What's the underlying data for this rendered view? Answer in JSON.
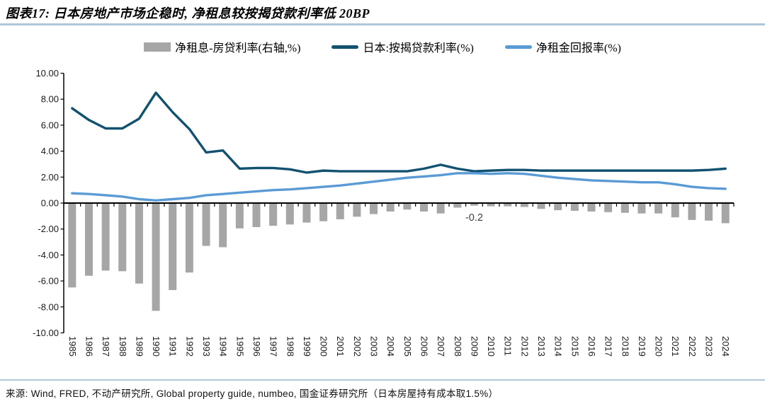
{
  "title": "图表17: 日本房地产市场企稳时, 净租息较按揭贷款利率低 20BP",
  "source": "来源: Wind, FRED, 不动产研究所, Global property guide, numbeo, 国金证券研究所（日本房屋持有成本取1.5%）",
  "legend": {
    "items": [
      {
        "label": "净租息-房贷利率(右轴,%)",
        "swatch": "bar",
        "color": "#a6a6a6"
      },
      {
        "label": "日本:按揭贷款利率(%)",
        "swatch": "line",
        "color": "#12516f"
      },
      {
        "label": "净租金回报率(%)",
        "swatch": "line",
        "color": "#5b9bd5"
      }
    ]
  },
  "colors": {
    "bar": "#a6a6a6",
    "mortgage_line": "#12516f",
    "rental_line": "#5b9bd5",
    "axis": "#000000",
    "rule": "#aec6d8",
    "annotation": "#404040"
  },
  "chart_data": {
    "type": "combo",
    "title": "图表17: 日本房地产市场企稳时, 净租息较按揭贷款利率低 20BP",
    "x": [
      1985,
      1986,
      1987,
      1988,
      1989,
      1990,
      1991,
      1992,
      1993,
      1994,
      1995,
      1996,
      1997,
      1998,
      1999,
      2000,
      2001,
      2002,
      2003,
      2004,
      2005,
      2006,
      2007,
      2008,
      2009,
      2010,
      2011,
      2012,
      2013,
      2014,
      2015,
      2016,
      2017,
      2018,
      2019,
      2020,
      2021,
      2022,
      2023,
      2024
    ],
    "series": [
      {
        "name": "净租息-房贷利率(右轴,%)",
        "type": "bar",
        "axis": "right",
        "color": "#a6a6a6",
        "values": [
          -6.5,
          -5.6,
          -5.2,
          -5.25,
          -6.2,
          -8.3,
          -6.7,
          -5.35,
          -3.3,
          -3.4,
          -1.95,
          -1.85,
          -1.75,
          -1.65,
          -1.5,
          -1.4,
          -1.25,
          -1.05,
          -0.85,
          -0.65,
          -0.5,
          -0.65,
          -0.8,
          -0.35,
          -0.2,
          -0.25,
          -0.25,
          -0.3,
          -0.45,
          -0.55,
          -0.6,
          -0.65,
          -0.7,
          -0.75,
          -0.8,
          -0.8,
          -1.1,
          -1.3,
          -1.35,
          -1.55
        ]
      },
      {
        "name": "日本:按揭贷款利率(%)",
        "type": "line",
        "axis": "left",
        "color": "#12516f",
        "values": [
          7.3,
          6.4,
          5.75,
          5.75,
          6.5,
          8.5,
          7.0,
          5.7,
          3.9,
          4.05,
          2.65,
          2.7,
          2.7,
          2.6,
          2.35,
          2.5,
          2.45,
          2.45,
          2.45,
          2.45,
          2.45,
          2.65,
          2.95,
          2.65,
          2.45,
          2.5,
          2.55,
          2.55,
          2.5,
          2.5,
          2.5,
          2.5,
          2.5,
          2.5,
          2.5,
          2.5,
          2.5,
          2.5,
          2.55,
          2.65
        ]
      },
      {
        "name": "净租金回报率(%)",
        "type": "line",
        "axis": "left",
        "color": "#5b9bd5",
        "values": [
          0.75,
          0.7,
          0.6,
          0.5,
          0.3,
          0.2,
          0.3,
          0.4,
          0.6,
          0.7,
          0.8,
          0.9,
          1.0,
          1.05,
          1.15,
          1.25,
          1.35,
          1.5,
          1.65,
          1.8,
          1.95,
          2.05,
          2.15,
          2.3,
          2.3,
          2.25,
          2.3,
          2.25,
          2.1,
          1.95,
          1.85,
          1.75,
          1.7,
          1.65,
          1.6,
          1.6,
          1.45,
          1.25,
          1.15,
          1.1
        ]
      }
    ],
    "ylim": [
      -10,
      10
    ],
    "ytick_step": 2,
    "ytick_format": "2dp",
    "grid": false,
    "legend_position": "top",
    "annotation": {
      "text": "-0.2",
      "year": 2009
    }
  }
}
